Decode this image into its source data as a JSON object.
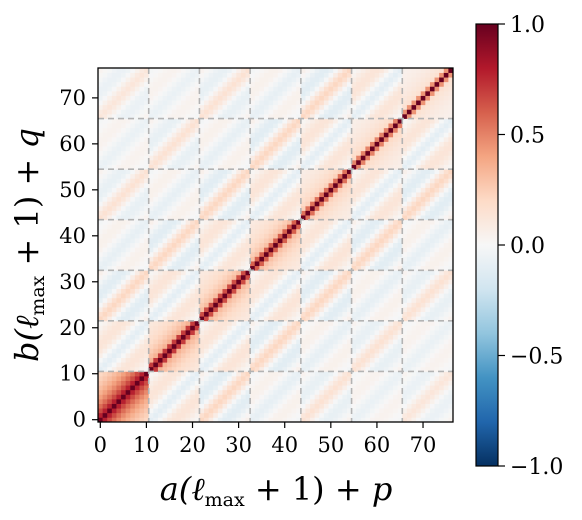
{
  "chart_data": {
    "type": "heatmap",
    "title": "",
    "xlabel": "a(ℓmax + 1) + p",
    "ylabel": "b(ℓmax + 1) + q",
    "xlim": [
      0,
      77
    ],
    "ylim": [
      0,
      77
    ],
    "x_ticks": [
      "0",
      "10",
      "20",
      "30",
      "40",
      "50",
      "60",
      "70"
    ],
    "y_ticks": [
      "0",
      "10",
      "20",
      "30",
      "40",
      "50",
      "60",
      "70"
    ],
    "grid_size": 77,
    "block_size": 11,
    "block_boundaries": [
      11,
      22,
      33,
      44,
      55,
      66
    ],
    "block_boundary_style": "dashed grey",
    "colorbar": {
      "colormap": "RdBu_r",
      "vmin": -1.0,
      "vmax": 1.0,
      "tick_labels": [
        "−1.0",
        "−0.5",
        "0.0",
        "0.5",
        "1.0"
      ],
      "tick_values": [
        -1.0,
        -0.5,
        0.0,
        0.5,
        1.0
      ]
    },
    "description_of_values": {
      "diagonal": 1.0,
      "diagonal_blocks_strength": [
        0.85,
        0.45,
        0.4,
        0.38,
        0.3,
        0.25,
        0.2
      ],
      "off_diagonal_block_range": [
        -0.15,
        0.35
      ]
    }
  }
}
